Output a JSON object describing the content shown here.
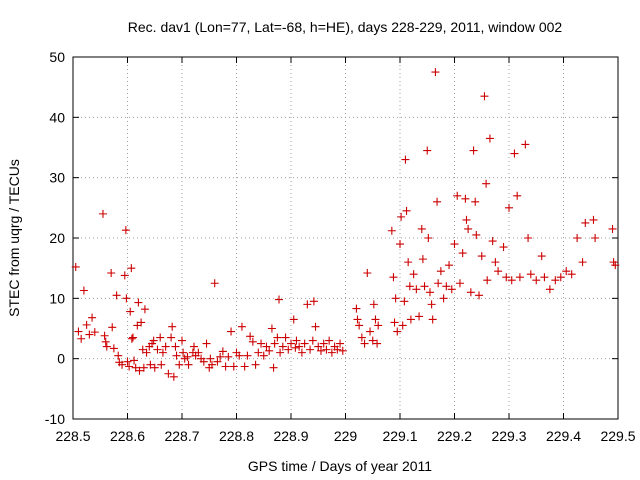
{
  "chart_data": {
    "type": "scatter",
    "title": "Rec. dav1 (Lon=77, Lat=-68, h=HE), days 228-229, 2011, window 002",
    "xlabel": "GPS time / Days of year 2011",
    "ylabel": "STEC from uqrg / TECUs",
    "xlim": [
      228.5,
      229.5
    ],
    "ylim": [
      -10,
      50
    ],
    "xticks": [
      "228.5",
      "228.6",
      "228.7",
      "228.8",
      "228.9",
      "229",
      "229.1",
      "229.2",
      "229.3",
      "229.4",
      "229.5"
    ],
    "yticks": [
      "-10",
      "0",
      "10",
      "20",
      "30",
      "40",
      "50"
    ],
    "grid": true,
    "marker": "plus",
    "color": "#cc0000",
    "points": [
      [
        228.505,
        15.2
      ],
      [
        228.51,
        4.5
      ],
      [
        228.515,
        3.3
      ],
      [
        228.52,
        11.3
      ],
      [
        228.525,
        5.6
      ],
      [
        228.53,
        4.0
      ],
      [
        228.535,
        6.8
      ],
      [
        228.54,
        4.4
      ],
      [
        228.555,
        24.0
      ],
      [
        228.558,
        3.8
      ],
      [
        228.56,
        2.8
      ],
      [
        228.562,
        2.0
      ],
      [
        228.57,
        14.2
      ],
      [
        228.572,
        5.2
      ],
      [
        228.575,
        1.7
      ],
      [
        228.58,
        10.5
      ],
      [
        228.583,
        0.5
      ],
      [
        228.585,
        -0.6
      ],
      [
        228.59,
        -1.0
      ],
      [
        228.595,
        13.8
      ],
      [
        228.597,
        21.3
      ],
      [
        228.598,
        10.0
      ],
      [
        228.6,
        -0.5
      ],
      [
        228.603,
        -1.3
      ],
      [
        228.605,
        7.8
      ],
      [
        228.607,
        15.0
      ],
      [
        228.608,
        3.3
      ],
      [
        228.61,
        3.5
      ],
      [
        228.612,
        -0.3
      ],
      [
        228.615,
        -1.5
      ],
      [
        228.618,
        5.5
      ],
      [
        228.62,
        9.3
      ],
      [
        228.622,
        -2.0
      ],
      [
        228.625,
        6.0
      ],
      [
        228.628,
        1.5
      ],
      [
        228.63,
        -1.5
      ],
      [
        228.632,
        8.2
      ],
      [
        228.635,
        1.0
      ],
      [
        228.64,
        2.0
      ],
      [
        228.642,
        -1.0
      ],
      [
        228.645,
        2.5
      ],
      [
        228.648,
        3.0
      ],
      [
        228.65,
        -1.5
      ],
      [
        228.655,
        1.5
      ],
      [
        228.66,
        3.5
      ],
      [
        228.662,
        -1.0
      ],
      [
        228.665,
        1.0
      ],
      [
        228.67,
        2.0
      ],
      [
        228.675,
        -2.5
      ],
      [
        228.68,
        3.5
      ],
      [
        228.682,
        5.3
      ],
      [
        228.685,
        -3.0
      ],
      [
        228.688,
        2.0
      ],
      [
        228.69,
        0.5
      ],
      [
        228.695,
        -1.0
      ],
      [
        228.7,
        3.0
      ],
      [
        228.702,
        1.0
      ],
      [
        228.705,
        0.0
      ],
      [
        228.71,
        0.3
      ],
      [
        228.712,
        -1.0
      ],
      [
        228.72,
        1.0
      ],
      [
        228.722,
        2.0
      ],
      [
        228.725,
        0.5
      ],
      [
        228.73,
        1.0
      ],
      [
        228.735,
        0.0
      ],
      [
        228.74,
        -0.5
      ],
      [
        228.745,
        2.5
      ],
      [
        228.75,
        -1.5
      ],
      [
        228.752,
        0.0
      ],
      [
        228.755,
        -1.0
      ],
      [
        228.76,
        12.5
      ],
      [
        228.765,
        -0.5
      ],
      [
        228.77,
        0.3
      ],
      [
        228.775,
        1.2
      ],
      [
        228.78,
        -1.3
      ],
      [
        228.785,
        0.3
      ],
      [
        228.79,
        4.5
      ],
      [
        228.795,
        -1.3
      ],
      [
        228.8,
        1.0
      ],
      [
        228.805,
        0.5
      ],
      [
        228.81,
        5.3
      ],
      [
        228.815,
        -1.3
      ],
      [
        228.82,
        0.5
      ],
      [
        228.825,
        3.7
      ],
      [
        228.83,
        2.8
      ],
      [
        228.835,
        -1.0
      ],
      [
        228.84,
        1.0
      ],
      [
        228.845,
        2.5
      ],
      [
        228.85,
        0.5
      ],
      [
        228.855,
        2.0
      ],
      [
        228.86,
        1.3
      ],
      [
        228.865,
        5.0
      ],
      [
        228.868,
        -1.5
      ],
      [
        228.87,
        2.5
      ],
      [
        228.875,
        3.5
      ],
      [
        228.878,
        9.8
      ],
      [
        228.88,
        1.0
      ],
      [
        228.885,
        2.0
      ],
      [
        228.89,
        3.5
      ],
      [
        228.895,
        1.5
      ],
      [
        228.9,
        2.5
      ],
      [
        228.905,
        6.5
      ],
      [
        228.908,
        1.8
      ],
      [
        228.91,
        3.0
      ],
      [
        228.915,
        2.0
      ],
      [
        228.92,
        1.0
      ],
      [
        228.925,
        2.5
      ],
      [
        228.93,
        9.0
      ],
      [
        228.935,
        1.5
      ],
      [
        228.94,
        3.0
      ],
      [
        228.942,
        9.5
      ],
      [
        228.945,
        5.3
      ],
      [
        228.95,
        2.0
      ],
      [
        228.955,
        1.3
      ],
      [
        228.96,
        2.5
      ],
      [
        228.965,
        1.5
      ],
      [
        228.97,
        3.0
      ],
      [
        228.975,
        1.0
      ],
      [
        228.98,
        2.0
      ],
      [
        228.985,
        1.5
      ],
      [
        228.99,
        2.5
      ],
      [
        228.995,
        1.3
      ],
      [
        229.02,
        8.3
      ],
      [
        229.022,
        6.5
      ],
      [
        229.025,
        5.5
      ],
      [
        229.03,
        3.5
      ],
      [
        229.035,
        2.5
      ],
      [
        229.04,
        14.2
      ],
      [
        229.045,
        4.5
      ],
      [
        229.05,
        3.0
      ],
      [
        229.052,
        9.0
      ],
      [
        229.055,
        6.5
      ],
      [
        229.058,
        2.5
      ],
      [
        229.06,
        5.5
      ],
      [
        229.085,
        21.2
      ],
      [
        229.088,
        13.5
      ],
      [
        229.09,
        6.0
      ],
      [
        229.092,
        10.0
      ],
      [
        229.095,
        4.5
      ],
      [
        229.1,
        19.0
      ],
      [
        229.102,
        23.5
      ],
      [
        229.105,
        5.5
      ],
      [
        229.108,
        9.5
      ],
      [
        229.11,
        33.0
      ],
      [
        229.112,
        24.5
      ],
      [
        229.115,
        16.0
      ],
      [
        229.118,
        12.0
      ],
      [
        229.12,
        6.5
      ],
      [
        229.125,
        14.0
      ],
      [
        229.13,
        11.5
      ],
      [
        229.135,
        7.0
      ],
      [
        229.14,
        21.5
      ],
      [
        229.142,
        16.5
      ],
      [
        229.145,
        12.0
      ],
      [
        229.15,
        34.5
      ],
      [
        229.152,
        20.0
      ],
      [
        229.155,
        11.0
      ],
      [
        229.158,
        9.0
      ],
      [
        229.16,
        6.5
      ],
      [
        229.165,
        47.5
      ],
      [
        229.168,
        26.0
      ],
      [
        229.17,
        12.5
      ],
      [
        229.175,
        14.5
      ],
      [
        229.18,
        10.0
      ],
      [
        229.185,
        12.0
      ],
      [
        229.19,
        15.5
      ],
      [
        229.195,
        11.5
      ],
      [
        229.2,
        19.0
      ],
      [
        229.205,
        27.0
      ],
      [
        229.21,
        12.5
      ],
      [
        229.215,
        17.5
      ],
      [
        229.22,
        26.5
      ],
      [
        229.222,
        23.0
      ],
      [
        229.225,
        21.5
      ],
      [
        229.23,
        11.0
      ],
      [
        229.235,
        34.5
      ],
      [
        229.238,
        26.0
      ],
      [
        229.24,
        20.5
      ],
      [
        229.245,
        10.5
      ],
      [
        229.25,
        17.0
      ],
      [
        229.255,
        43.5
      ],
      [
        229.258,
        29.0
      ],
      [
        229.26,
        13.0
      ],
      [
        229.265,
        36.5
      ],
      [
        229.27,
        19.5
      ],
      [
        229.275,
        16.0
      ],
      [
        229.28,
        14.5
      ],
      [
        229.29,
        18.5
      ],
      [
        229.295,
        13.5
      ],
      [
        229.3,
        25.0
      ],
      [
        229.305,
        13.0
      ],
      [
        229.31,
        34.0
      ],
      [
        229.315,
        27.0
      ],
      [
        229.32,
        13.5
      ],
      [
        229.33,
        35.5
      ],
      [
        229.335,
        20.0
      ],
      [
        229.34,
        14.0
      ],
      [
        229.35,
        13.0
      ],
      [
        229.36,
        17.0
      ],
      [
        229.365,
        13.5
      ],
      [
        229.375,
        11.5
      ],
      [
        229.385,
        13.0
      ],
      [
        229.395,
        13.5
      ],
      [
        229.405,
        14.5
      ],
      [
        229.415,
        14.0
      ],
      [
        229.425,
        20.0
      ],
      [
        229.435,
        16.0
      ],
      [
        229.44,
        22.5
      ],
      [
        229.455,
        23.0
      ],
      [
        229.458,
        20.0
      ],
      [
        229.49,
        21.5
      ],
      [
        229.492,
        16.0
      ],
      [
        229.495,
        15.5
      ]
    ]
  }
}
